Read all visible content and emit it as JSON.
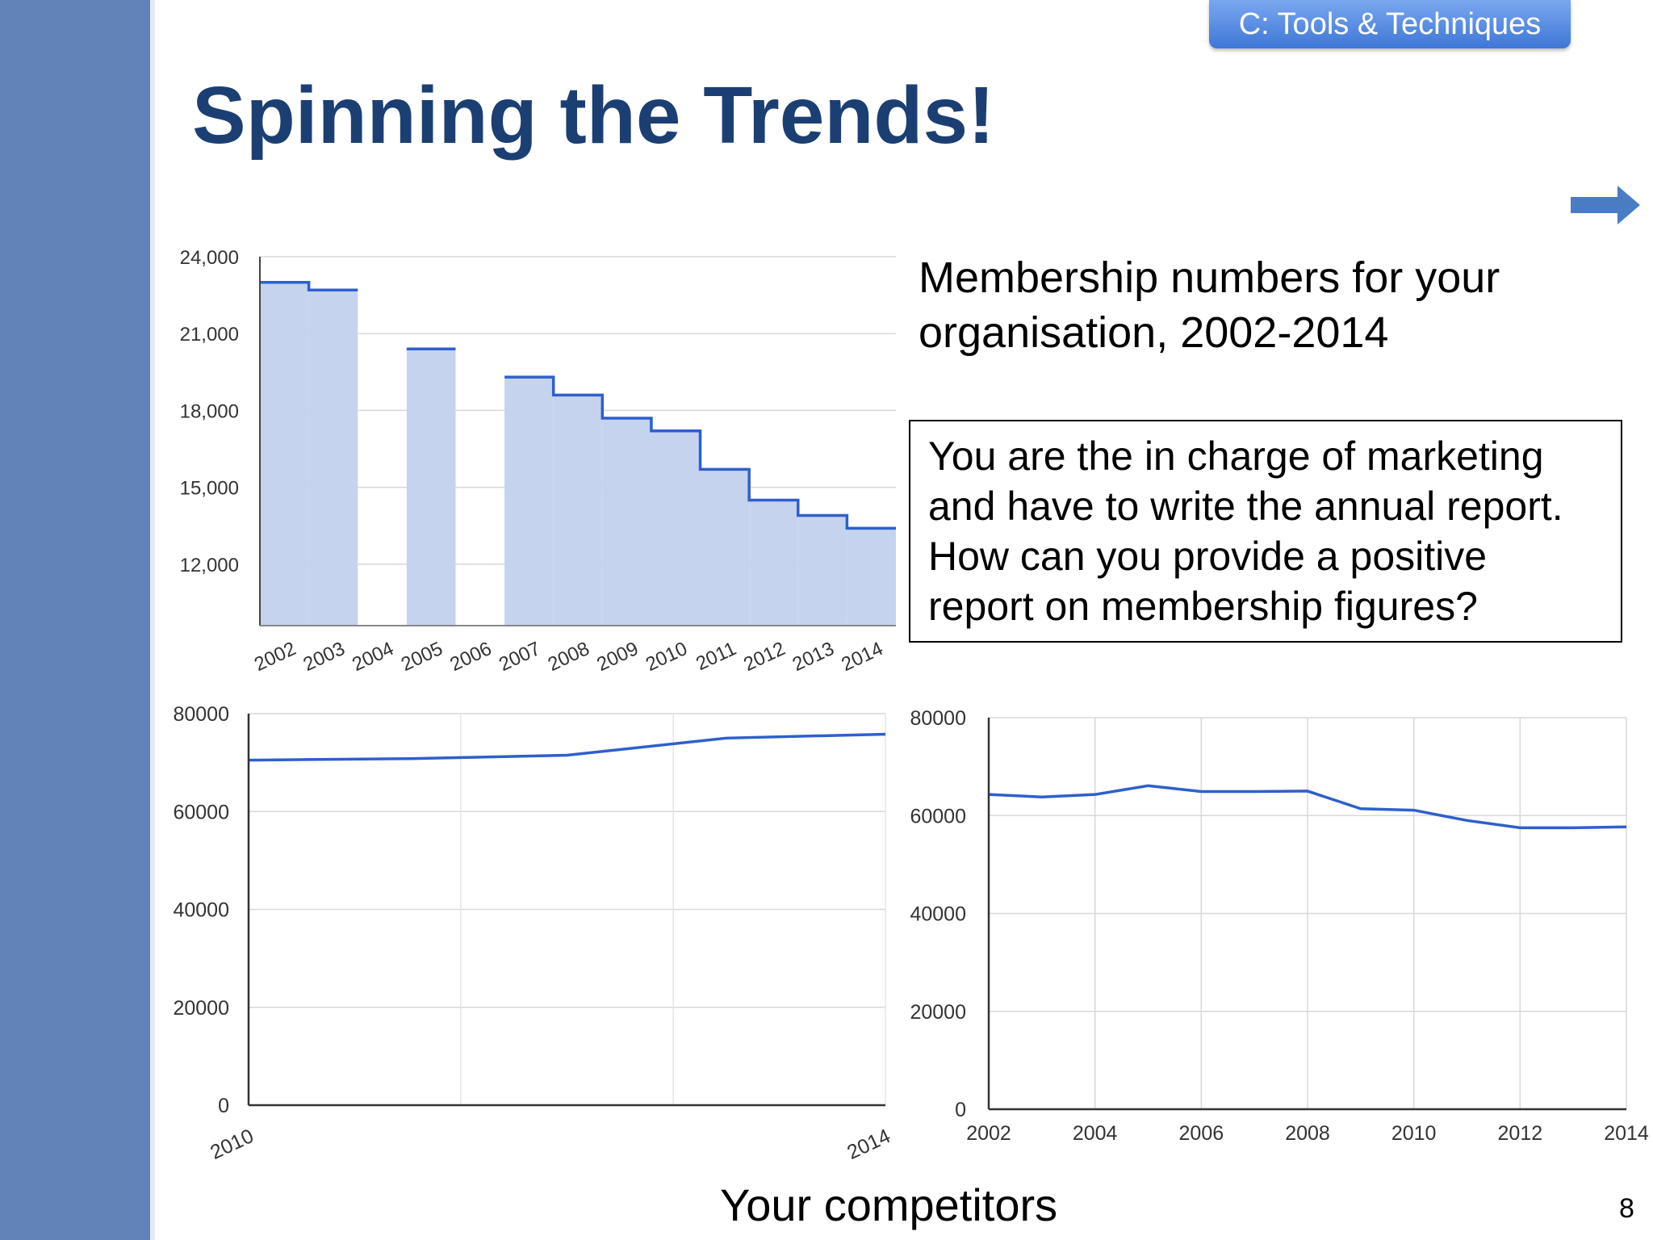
{
  "theme": {
    "sidebar": "#6283b8",
    "title": "#1c3f73",
    "accent": "#2e5fcc",
    "tag_top": "#7aa7ef",
    "tag_bottom": "#3f77d6",
    "arrow": "#4a7cc4",
    "step_fill": "#c5d3ef",
    "grid": "#d8d8d8"
  },
  "tag": {
    "label": "C: Tools & Techniques"
  },
  "title": "Spinning the Trends!",
  "description": "Membership numbers for your organisation, 2002-2014",
  "prompt": "You are the in charge of marketing and have to write the annual report. How can you provide a positive report on membership figures?",
  "caption": "Your competitors",
  "page_number": "8",
  "arrow_icon": "right-arrow-icon",
  "chart_data": [
    {
      "type": "area",
      "ylim": [
        9600,
        24000
      ],
      "yticks": [
        12000,
        15000,
        18000,
        21000,
        24000
      ],
      "ytick_labels": [
        "12,000",
        "15,000",
        "18,000",
        "21,000",
        "24,000"
      ],
      "categories": [
        "2002",
        "2003",
        "2004",
        "2005",
        "2006",
        "2007",
        "2008",
        "2009",
        "2010",
        "2011",
        "2012",
        "2013",
        "2014"
      ],
      "values": [
        23000,
        22700,
        null,
        20400,
        null,
        19300,
        18600,
        17700,
        17200,
        15700,
        14500,
        13900,
        13400
      ],
      "grid": true,
      "legend": "none"
    },
    {
      "type": "line",
      "ylim": [
        0,
        80000
      ],
      "yticks": [
        0,
        20000,
        40000,
        60000,
        80000
      ],
      "x": [
        2010,
        2011,
        2012,
        2013,
        2014
      ],
      "values": [
        70500,
        70800,
        71500,
        75000,
        75800
      ],
      "xtick_labels": [
        "2010",
        "2014"
      ],
      "grid": true,
      "legend": "none"
    },
    {
      "type": "line",
      "ylim": [
        0,
        80000
      ],
      "yticks": [
        0,
        20000,
        40000,
        60000,
        80000
      ],
      "x": [
        2002,
        2003,
        2004,
        2005,
        2006,
        2007,
        2008,
        2009,
        2010,
        2011,
        2012,
        2013,
        2014
      ],
      "values": [
        64300,
        63800,
        64300,
        66100,
        64900,
        64900,
        65000,
        61400,
        61100,
        59000,
        57500,
        57500,
        57700
      ],
      "xtick_labels": [
        "2002",
        "2004",
        "2006",
        "2008",
        "2010",
        "2012",
        "2014"
      ],
      "grid": true,
      "legend": "none"
    }
  ]
}
